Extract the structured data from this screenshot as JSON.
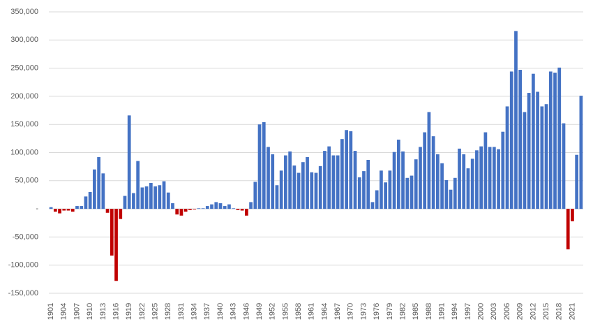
{
  "chart_data": {
    "type": "bar",
    "categories": [
      "1901",
      null,
      null,
      "1904",
      null,
      null,
      "1907",
      null,
      null,
      "1910",
      null,
      null,
      "1913",
      null,
      null,
      "1916",
      null,
      null,
      "1919",
      null,
      null,
      "1922",
      null,
      null,
      "1925",
      null,
      null,
      "1928",
      null,
      null,
      "1931",
      null,
      null,
      "1934",
      null,
      null,
      "1937",
      null,
      null,
      "1940",
      null,
      null,
      "1943",
      null,
      null,
      "1946",
      null,
      null,
      "1949",
      null,
      null,
      "1952",
      null,
      null,
      "1955",
      null,
      null,
      "1958",
      null,
      null,
      "1961",
      null,
      null,
      "1964",
      null,
      null,
      "1967",
      null,
      null,
      "1970",
      null,
      null,
      "1973",
      null,
      null,
      "1976",
      null,
      null,
      "1979",
      null,
      null,
      "1982",
      null,
      null,
      "1985",
      null,
      null,
      "1988",
      null,
      null,
      "1991",
      null,
      null,
      "1994",
      null,
      null,
      "1997",
      null,
      null,
      "2000",
      null,
      null,
      "2003",
      null,
      null,
      "2006",
      null,
      null,
      "2009",
      null,
      null,
      "2012",
      null,
      null,
      "2015",
      null,
      null,
      "2018",
      null,
      null,
      "2021",
      null,
      null
    ],
    "values": [
      3000,
      -5000,
      -8000,
      -3000,
      -3000,
      -5000,
      5000,
      5000,
      22000,
      30000,
      70000,
      92000,
      63000,
      -7000,
      -83000,
      -128000,
      -18000,
      23000,
      166000,
      28000,
      85000,
      38000,
      40000,
      46000,
      40000,
      42000,
      49000,
      29000,
      10000,
      -10000,
      -12000,
      -5000,
      -2000,
      -1000,
      1000,
      1000,
      5000,
      8000,
      12000,
      10000,
      5000,
      8000,
      1000,
      -2000,
      -3000,
      -12000,
      12000,
      48000,
      150000,
      154000,
      110000,
      97000,
      42000,
      68000,
      95000,
      102000,
      77000,
      64000,
      83000,
      92000,
      65000,
      64000,
      76000,
      103000,
      111000,
      95000,
      95000,
      124000,
      140000,
      138000,
      103000,
      56000,
      67000,
      87000,
      12000,
      33000,
      68000,
      47000,
      68000,
      101000,
      123000,
      102000,
      55000,
      59000,
      88000,
      110000,
      136000,
      172000,
      129000,
      97000,
      81000,
      51000,
      34000,
      55000,
      107000,
      97000,
      72000,
      89000,
      104000,
      111000,
      136000,
      110000,
      110000,
      106000,
      137000,
      182000,
      244000,
      316000,
      247000,
      172000,
      206000,
      240000,
      208000,
      182000,
      186000,
      244000,
      242000,
      251000,
      152000,
      -72000,
      -22000,
      96000,
      201000
    ],
    "color": "#4472c4",
    "negative_color": "#c00000",
    "ylim": [
      -150000,
      350000
    ],
    "yticks": [
      {
        "value": -150000,
        "label": "-150,000"
      },
      {
        "value": -100000,
        "label": "-100,000"
      },
      {
        "value": -50000,
        "label": "-50,000"
      },
      {
        "value": 0,
        "label": "-"
      },
      {
        "value": 50000,
        "label": "50,000"
      },
      {
        "value": 100000,
        "label": "100,000"
      },
      {
        "value": 150000,
        "label": "150,000"
      },
      {
        "value": 200000,
        "label": "200,000"
      },
      {
        "value": 250000,
        "label": "250,000"
      },
      {
        "value": 300000,
        "label": "300,000"
      },
      {
        "value": 350000,
        "label": "350,000"
      }
    ],
    "grid": true
  }
}
